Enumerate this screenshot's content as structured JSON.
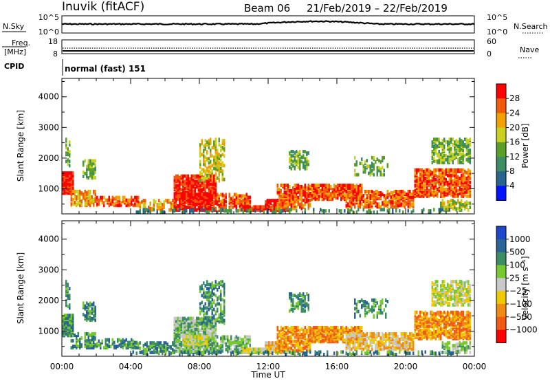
{
  "header": {
    "station": "Inuvik (fitACF)",
    "beam": "Beam 06",
    "date_range": "21/Feb/2019 – 22/Feb/2019"
  },
  "top_panels": {
    "nsky": {
      "label": "N.Sky",
      "left_ticks": [
        "10^5",
        "10^0"
      ],
      "right_ticks": [
        "10^5",
        "10^0"
      ],
      "right_label": "N.Search"
    },
    "freq": {
      "label_top": "Freq.",
      "label_bottom": "[MHz]",
      "left_ticks": [
        "18",
        "8"
      ],
      "right_ticks": [
        "60",
        "0"
      ],
      "right_label": "Nave"
    },
    "cpid": {
      "label": "CPID",
      "mode": "normal (fast) 151"
    }
  },
  "chart_data": [
    {
      "type": "heatmap",
      "title": "",
      "xlabel": "",
      "ylabel": "Slant Range [km]",
      "x_ticks": [
        "00:00",
        "04:00",
        "08:00",
        "12:00",
        "16:00",
        "20:00",
        "00:00"
      ],
      "xlim_hours": [
        0,
        24
      ],
      "y_ticks": [
        1000,
        2000,
        3000,
        4000
      ],
      "ylim": [
        180,
        4600
      ],
      "colorbar": {
        "label": "Power [dB]",
        "ticks": [
          "28",
          "24",
          "20",
          "16",
          "12",
          "8",
          "4"
        ],
        "colors": [
          "#ff0000",
          "#f05a0a",
          "#f0a000",
          "#c8d21e",
          "#5aa028",
          "#3c8c64",
          "#28648c",
          "#0014ff"
        ]
      }
    },
    {
      "type": "heatmap",
      "title": "",
      "xlabel": "Time UT",
      "ylabel": "Slant Range [km]",
      "x_ticks": [
        "00:00",
        "04:00",
        "08:00",
        "12:00",
        "16:00",
        "20:00",
        "00:00"
      ],
      "xlim_hours": [
        0,
        24
      ],
      "y_ticks": [
        1000,
        2000,
        3000,
        4000
      ],
      "ylim": [
        180,
        4600
      ],
      "colorbar": {
        "label": "Velocity [m s⁻¹]",
        "ticks": [
          "1000",
          "500",
          "100",
          "25",
          "−25",
          "−100",
          "−500",
          "−1000"
        ],
        "colors": [
          "#1e46c8",
          "#286496",
          "#3c8c64",
          "#78c832",
          "#c8c8c8",
          "#f0c800",
          "#f08c14",
          "#f05a14",
          "#ff0000"
        ]
      }
    }
  ],
  "colors": {
    "power_scale": [
      "#0014ff",
      "#28648c",
      "#3c8c64",
      "#5aa028",
      "#c8d21e",
      "#f0a000",
      "#f05a0a",
      "#ff0000"
    ],
    "velocity_scale": [
      "#ff0000",
      "#f05a14",
      "#f08c14",
      "#f0c800",
      "#c8c8c8",
      "#78c832",
      "#3c8c64",
      "#286496",
      "#1e46c8"
    ]
  }
}
